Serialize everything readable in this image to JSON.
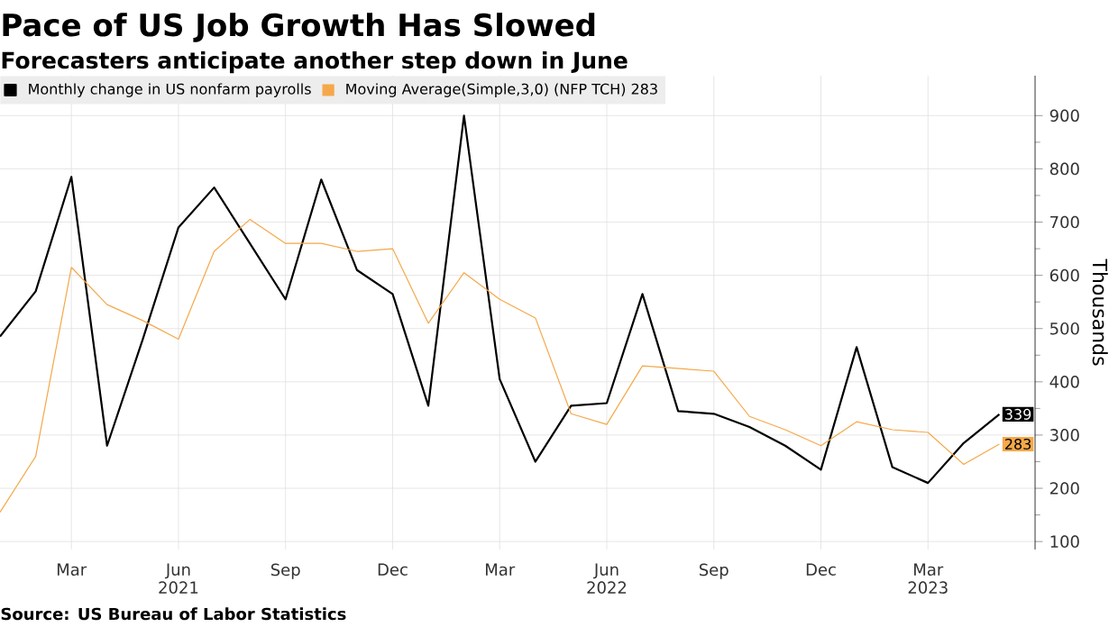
{
  "chart_data": {
    "type": "line",
    "title": "Pace of US Job Growth Has Slowed",
    "subtitle": "Forecasters anticipate another step down in June",
    "x": [
      "2021-01",
      "2021-02",
      "2021-03",
      "2021-04",
      "2021-05",
      "2021-06",
      "2021-07",
      "2021-08",
      "2021-09",
      "2021-10",
      "2021-11",
      "2021-12",
      "2022-01",
      "2022-02",
      "2022-03",
      "2022-04",
      "2022-05",
      "2022-06",
      "2022-07",
      "2022-08",
      "2022-09",
      "2022-10",
      "2022-11",
      "2022-12",
      "2023-01",
      "2023-02",
      "2023-03",
      "2023-04",
      "2023-05"
    ],
    "series": [
      {
        "name": "Monthly change in US nonfarm payrolls",
        "color": "#000000",
        "values": [
          485,
          570,
          785,
          280,
          480,
          690,
          765,
          660,
          555,
          780,
          610,
          565,
          355,
          900,
          405,
          250,
          355,
          360,
          565,
          345,
          340,
          315,
          280,
          235,
          465,
          240,
          210,
          285,
          339
        ],
        "value_labels": [
          null,
          null,
          null,
          null,
          null,
          null,
          null,
          null,
          null,
          null,
          null,
          null,
          null,
          null,
          null,
          null,
          null,
          null,
          null,
          null,
          null,
          null,
          null,
          null,
          null,
          null,
          null,
          null,
          "339"
        ]
      },
      {
        "name": "Moving Average(Simple,3,0) (NFP TCH) 283",
        "color": "#f5a849",
        "values": [
          155,
          260,
          615,
          545,
          515,
          480,
          645,
          705,
          660,
          660,
          645,
          650,
          510,
          605,
          555,
          520,
          340,
          320,
          430,
          425,
          420,
          335,
          310,
          280,
          325,
          310,
          305,
          245,
          283
        ],
        "value_labels": [
          null,
          null,
          null,
          null,
          null,
          null,
          null,
          null,
          null,
          null,
          null,
          null,
          null,
          null,
          null,
          null,
          null,
          null,
          null,
          null,
          null,
          null,
          null,
          null,
          null,
          null,
          null,
          null,
          "283"
        ]
      }
    ],
    "xlim": [
      "2021-01",
      "2023-06"
    ],
    "xticks": [
      {
        "value": "2021-03",
        "label": "Mar"
      },
      {
        "value": "2021-06",
        "label": "Jun 2021"
      },
      {
        "value": "2021-09",
        "label": "Sep"
      },
      {
        "value": "2021-12",
        "label": "Dec"
      },
      {
        "value": "2022-03",
        "label": "Mar"
      },
      {
        "value": "2022-06",
        "label": "Jun 2022"
      },
      {
        "value": "2022-09",
        "label": "Sep"
      },
      {
        "value": "2022-12",
        "label": "Dec"
      },
      {
        "value": "2023-03",
        "label": "Mar 2023"
      }
    ],
    "ylim": [
      85,
      975
    ],
    "yticks": [
      100,
      200,
      300,
      400,
      500,
      600,
      700,
      800,
      900
    ],
    "ylabel": "Thousands",
    "grid": true,
    "legend": "top left",
    "annotations": [
      "Source: US Bureau of Labor Statistics"
    ]
  }
}
